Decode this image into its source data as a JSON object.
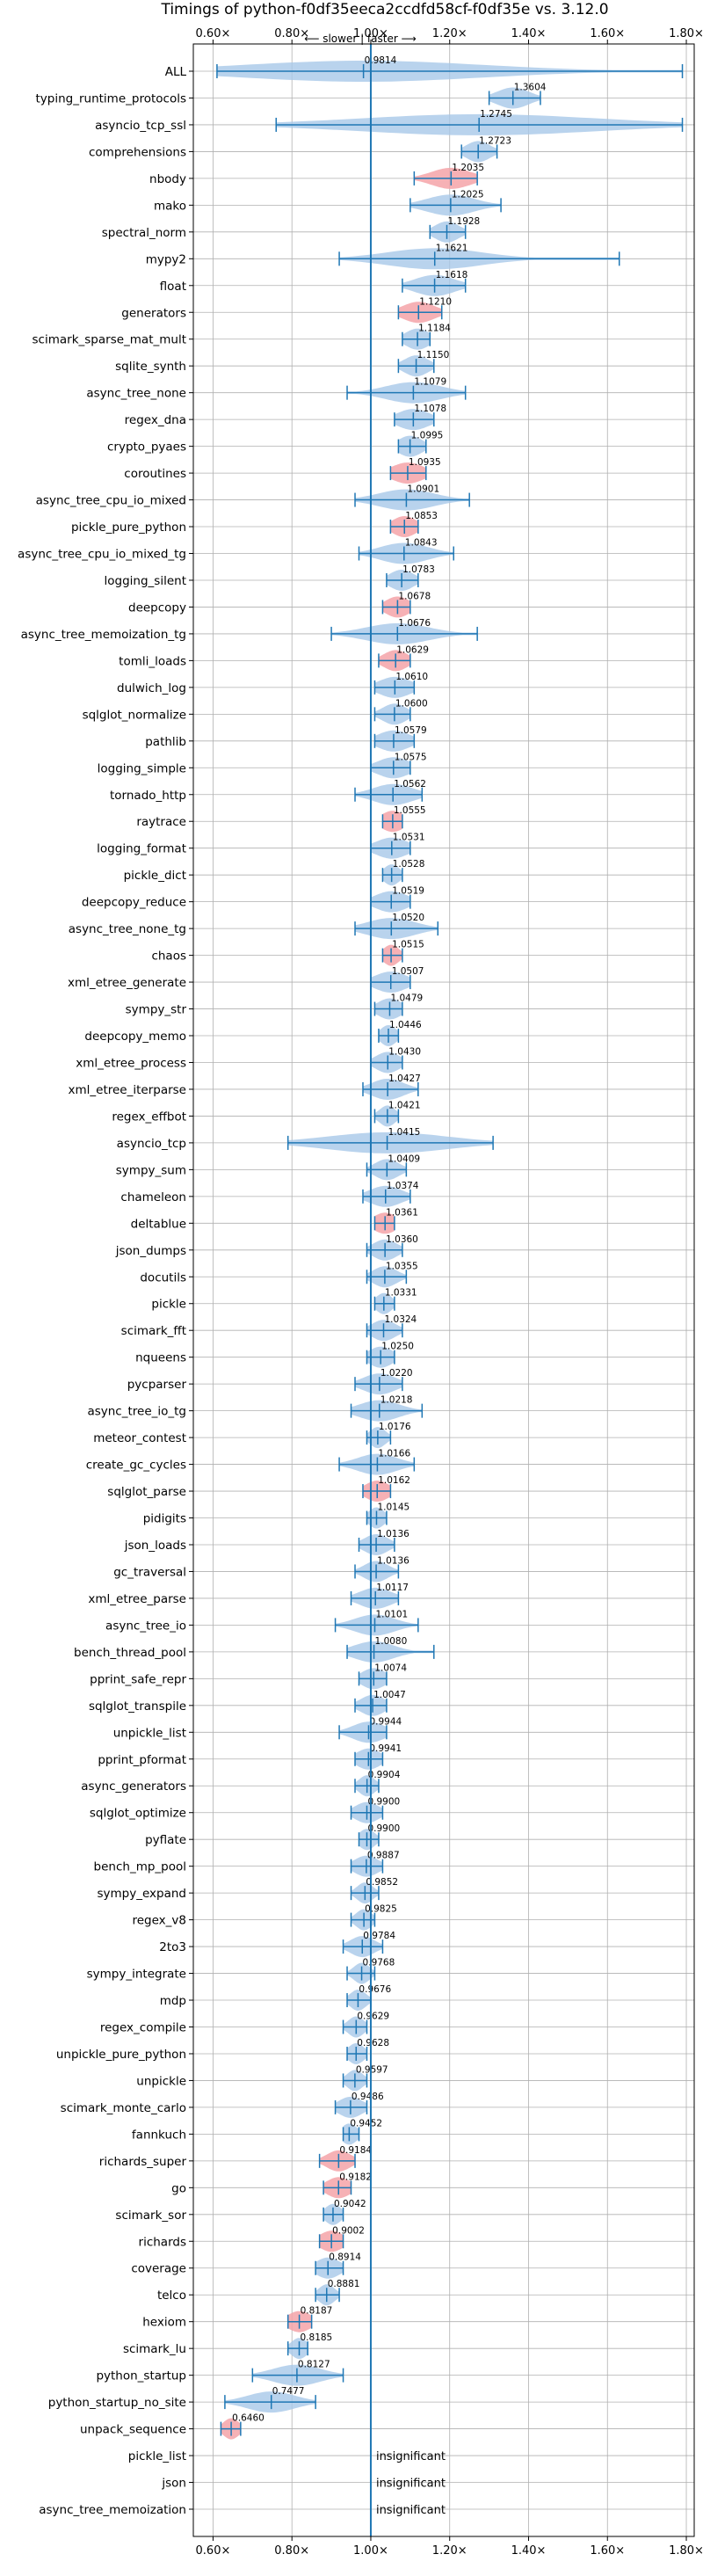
{
  "chart_data": {
    "type": "violin",
    "title": "Timings of python-f0df35eeca2ccdfd58cf-f0df35e vs. 3.12.0",
    "direction_annotation": "⟵ slower | faster ⟶",
    "xlim": [
      0.55,
      1.82
    ],
    "x_ticks": [
      0.6,
      0.8,
      1.0,
      1.2,
      1.4,
      1.6,
      1.8
    ],
    "x_tick_labels": [
      "0.60×",
      "0.80×",
      "1.00×",
      "1.20×",
      "1.40×",
      "1.60×",
      "1.80×"
    ],
    "reference_line": 1.0,
    "grid": true,
    "insignificant_label": "insignificant",
    "rows": [
      {
        "name": "ALL",
        "value": 0.9814,
        "label": "0.9814",
        "min": 0.61,
        "max": 1.79,
        "spread": 0.3,
        "highlight": false
      },
      {
        "name": "typing_runtime_protocols",
        "value": 1.3604,
        "label": "1.3604",
        "min": 1.3,
        "max": 1.43,
        "spread": 0.04,
        "highlight": false
      },
      {
        "name": "asyncio_tcp_ssl",
        "value": 1.2745,
        "label": "1.2745",
        "min": 0.76,
        "max": 1.79,
        "spread": 0.3,
        "highlight": false
      },
      {
        "name": "comprehensions",
        "value": 1.2723,
        "label": "1.2723",
        "min": 1.23,
        "max": 1.32,
        "spread": 0.03,
        "highlight": false
      },
      {
        "name": "nbody",
        "value": 1.2035,
        "label": "1.2035",
        "min": 1.11,
        "max": 1.27,
        "spread": 0.05,
        "highlight": true
      },
      {
        "name": "mako",
        "value": 1.2025,
        "label": "1.2025",
        "min": 1.1,
        "max": 1.33,
        "spread": 0.06,
        "highlight": false
      },
      {
        "name": "spectral_norm",
        "value": 1.1928,
        "label": "1.1928",
        "min": 1.15,
        "max": 1.24,
        "spread": 0.03,
        "highlight": false
      },
      {
        "name": "mypy2",
        "value": 1.1621,
        "label": "1.1621",
        "min": 0.92,
        "max": 1.63,
        "spread": 0.12,
        "highlight": false
      },
      {
        "name": "float",
        "value": 1.1618,
        "label": "1.1618",
        "min": 1.08,
        "max": 1.24,
        "spread": 0.05,
        "highlight": false
      },
      {
        "name": "generators",
        "value": 1.121,
        "label": "1.1210",
        "min": 1.07,
        "max": 1.18,
        "spread": 0.04,
        "highlight": true
      },
      {
        "name": "scimark_sparse_mat_mult",
        "value": 1.1184,
        "label": "1.1184",
        "min": 1.08,
        "max": 1.15,
        "spread": 0.03,
        "highlight": false
      },
      {
        "name": "sqlite_synth",
        "value": 1.115,
        "label": "1.1150",
        "min": 1.07,
        "max": 1.16,
        "spread": 0.03,
        "highlight": false
      },
      {
        "name": "async_tree_none",
        "value": 1.1079,
        "label": "1.1079",
        "min": 0.94,
        "max": 1.24,
        "spread": 0.07,
        "highlight": false
      },
      {
        "name": "regex_dna",
        "value": 1.1078,
        "label": "1.1078",
        "min": 1.06,
        "max": 1.16,
        "spread": 0.04,
        "highlight": false
      },
      {
        "name": "crypto_pyaes",
        "value": 1.0995,
        "label": "1.0995",
        "min": 1.07,
        "max": 1.14,
        "spread": 0.03,
        "highlight": false
      },
      {
        "name": "coroutines",
        "value": 1.0935,
        "label": "1.0935",
        "min": 1.05,
        "max": 1.14,
        "spread": 0.04,
        "highlight": true
      },
      {
        "name": "async_tree_cpu_io_mixed",
        "value": 1.0901,
        "label": "1.0901",
        "min": 0.96,
        "max": 1.25,
        "spread": 0.07,
        "highlight": false
      },
      {
        "name": "pickle_pure_python",
        "value": 1.0853,
        "label": "1.0853",
        "min": 1.05,
        "max": 1.12,
        "spread": 0.03,
        "highlight": true
      },
      {
        "name": "async_tree_cpu_io_mixed_tg",
        "value": 1.0843,
        "label": "1.0843",
        "min": 0.97,
        "max": 1.21,
        "spread": 0.06,
        "highlight": false
      },
      {
        "name": "logging_silent",
        "value": 1.0783,
        "label": "1.0783",
        "min": 1.04,
        "max": 1.12,
        "spread": 0.03,
        "highlight": false
      },
      {
        "name": "deepcopy",
        "value": 1.0678,
        "label": "1.0678",
        "min": 1.03,
        "max": 1.1,
        "spread": 0.03,
        "highlight": true
      },
      {
        "name": "async_tree_memoization_tg",
        "value": 1.0676,
        "label": "1.0676",
        "min": 0.9,
        "max": 1.27,
        "spread": 0.08,
        "highlight": false
      },
      {
        "name": "tomli_loads",
        "value": 1.0629,
        "label": "1.0629",
        "min": 1.02,
        "max": 1.1,
        "spread": 0.03,
        "highlight": true
      },
      {
        "name": "dulwich_log",
        "value": 1.061,
        "label": "1.0610",
        "min": 1.01,
        "max": 1.11,
        "spread": 0.04,
        "highlight": false
      },
      {
        "name": "sqlglot_normalize",
        "value": 1.06,
        "label": "1.0600",
        "min": 1.01,
        "max": 1.1,
        "spread": 0.03,
        "highlight": false
      },
      {
        "name": "pathlib",
        "value": 1.0579,
        "label": "1.0579",
        "min": 1.01,
        "max": 1.11,
        "spread": 0.04,
        "highlight": false
      },
      {
        "name": "logging_simple",
        "value": 1.0575,
        "label": "1.0575",
        "min": 1.0,
        "max": 1.1,
        "spread": 0.04,
        "highlight": false
      },
      {
        "name": "tornado_http",
        "value": 1.0562,
        "label": "1.0562",
        "min": 0.96,
        "max": 1.13,
        "spread": 0.05,
        "highlight": false
      },
      {
        "name": "raytrace",
        "value": 1.0555,
        "label": "1.0555",
        "min": 1.03,
        "max": 1.08,
        "spread": 0.03,
        "highlight": true
      },
      {
        "name": "logging_format",
        "value": 1.0531,
        "label": "1.0531",
        "min": 1.0,
        "max": 1.1,
        "spread": 0.04,
        "highlight": false
      },
      {
        "name": "pickle_dict",
        "value": 1.0528,
        "label": "1.0528",
        "min": 1.03,
        "max": 1.08,
        "spread": 0.02,
        "highlight": false
      },
      {
        "name": "deepcopy_reduce",
        "value": 1.0519,
        "label": "1.0519",
        "min": 1.0,
        "max": 1.1,
        "spread": 0.04,
        "highlight": false
      },
      {
        "name": "async_tree_none_tg",
        "value": 1.052,
        "label": "1.0520",
        "min": 0.96,
        "max": 1.17,
        "spread": 0.06,
        "highlight": false
      },
      {
        "name": "chaos",
        "value": 1.0515,
        "label": "1.0515",
        "min": 1.03,
        "max": 1.08,
        "spread": 0.02,
        "highlight": true
      },
      {
        "name": "xml_etree_generate",
        "value": 1.0507,
        "label": "1.0507",
        "min": 1.0,
        "max": 1.1,
        "spread": 0.04,
        "highlight": false
      },
      {
        "name": "sympy_str",
        "value": 1.0479,
        "label": "1.0479",
        "min": 1.01,
        "max": 1.08,
        "spread": 0.03,
        "highlight": false
      },
      {
        "name": "deepcopy_memo",
        "value": 1.0446,
        "label": "1.0446",
        "min": 1.02,
        "max": 1.07,
        "spread": 0.02,
        "highlight": false
      },
      {
        "name": "xml_etree_process",
        "value": 1.043,
        "label": "1.0430",
        "min": 1.0,
        "max": 1.08,
        "spread": 0.03,
        "highlight": false
      },
      {
        "name": "xml_etree_iterparse",
        "value": 1.0427,
        "label": "1.0427",
        "min": 0.98,
        "max": 1.12,
        "spread": 0.04,
        "highlight": false
      },
      {
        "name": "regex_effbot",
        "value": 1.0421,
        "label": "1.0421",
        "min": 1.01,
        "max": 1.07,
        "spread": 0.02,
        "highlight": false
      },
      {
        "name": "asyncio_tcp",
        "value": 1.0415,
        "label": "1.0415",
        "min": 0.79,
        "max": 1.31,
        "spread": 0.15,
        "highlight": false
      },
      {
        "name": "sympy_sum",
        "value": 1.0409,
        "label": "1.0409",
        "min": 0.99,
        "max": 1.09,
        "spread": 0.03,
        "highlight": false
      },
      {
        "name": "chameleon",
        "value": 1.0374,
        "label": "1.0374",
        "min": 0.98,
        "max": 1.1,
        "spread": 0.04,
        "highlight": false
      },
      {
        "name": "deltablue",
        "value": 1.0361,
        "label": "1.0361",
        "min": 1.01,
        "max": 1.06,
        "spread": 0.03,
        "highlight": true
      },
      {
        "name": "json_dumps",
        "value": 1.036,
        "label": "1.0360",
        "min": 0.99,
        "max": 1.08,
        "spread": 0.03,
        "highlight": false
      },
      {
        "name": "docutils",
        "value": 1.0355,
        "label": "1.0355",
        "min": 0.99,
        "max": 1.09,
        "spread": 0.03,
        "highlight": false
      },
      {
        "name": "pickle",
        "value": 1.0331,
        "label": "1.0331",
        "min": 1.01,
        "max": 1.06,
        "spread": 0.02,
        "highlight": false
      },
      {
        "name": "scimark_fft",
        "value": 1.0324,
        "label": "1.0324",
        "min": 0.99,
        "max": 1.08,
        "spread": 0.03,
        "highlight": false
      },
      {
        "name": "nqueens",
        "value": 1.025,
        "label": "1.0250",
        "min": 0.99,
        "max": 1.06,
        "spread": 0.03,
        "highlight": false
      },
      {
        "name": "pycparser",
        "value": 1.022,
        "label": "1.0220",
        "min": 0.96,
        "max": 1.08,
        "spread": 0.04,
        "highlight": false
      },
      {
        "name": "async_tree_io_tg",
        "value": 1.0218,
        "label": "1.0218",
        "min": 0.95,
        "max": 1.13,
        "spread": 0.05,
        "highlight": false
      },
      {
        "name": "meteor_contest",
        "value": 1.0176,
        "label": "1.0176",
        "min": 0.99,
        "max": 1.05,
        "spread": 0.02,
        "highlight": false
      },
      {
        "name": "create_gc_cycles",
        "value": 1.0166,
        "label": "1.0166",
        "min": 0.92,
        "max": 1.11,
        "spread": 0.05,
        "highlight": false
      },
      {
        "name": "sqlglot_parse",
        "value": 1.0162,
        "label": "1.0162",
        "min": 0.98,
        "max": 1.05,
        "spread": 0.03,
        "highlight": true
      },
      {
        "name": "pidigits",
        "value": 1.0145,
        "label": "1.0145",
        "min": 0.99,
        "max": 1.04,
        "spread": 0.02,
        "highlight": false
      },
      {
        "name": "json_loads",
        "value": 1.0136,
        "label": "1.0136",
        "min": 0.97,
        "max": 1.06,
        "spread": 0.03,
        "highlight": false
      },
      {
        "name": "gc_traversal",
        "value": 1.0136,
        "label": "1.0136",
        "min": 0.96,
        "max": 1.07,
        "spread": 0.03,
        "highlight": false
      },
      {
        "name": "xml_etree_parse",
        "value": 1.0117,
        "label": "1.0117",
        "min": 0.95,
        "max": 1.07,
        "spread": 0.04,
        "highlight": false
      },
      {
        "name": "async_tree_io",
        "value": 1.0101,
        "label": "1.0101",
        "min": 0.91,
        "max": 1.12,
        "spread": 0.05,
        "highlight": false
      },
      {
        "name": "bench_thread_pool",
        "value": 1.008,
        "label": "1.0080",
        "min": 0.94,
        "max": 1.16,
        "spread": 0.05,
        "highlight": false
      },
      {
        "name": "pprint_safe_repr",
        "value": 1.0074,
        "label": "1.0074",
        "min": 0.97,
        "max": 1.04,
        "spread": 0.03,
        "highlight": false
      },
      {
        "name": "sqlglot_transpile",
        "value": 1.0047,
        "label": "1.0047",
        "min": 0.96,
        "max": 1.04,
        "spread": 0.03,
        "highlight": false
      },
      {
        "name": "unpickle_list",
        "value": 0.9944,
        "label": "0.9944",
        "min": 0.92,
        "max": 1.04,
        "spread": 0.04,
        "highlight": false
      },
      {
        "name": "pprint_pformat",
        "value": 0.9941,
        "label": "0.9941",
        "min": 0.96,
        "max": 1.03,
        "spread": 0.03,
        "highlight": false
      },
      {
        "name": "async_generators",
        "value": 0.9904,
        "label": "0.9904",
        "min": 0.96,
        "max": 1.02,
        "spread": 0.02,
        "highlight": false
      },
      {
        "name": "sqlglot_optimize",
        "value": 0.99,
        "label": "0.9900",
        "min": 0.95,
        "max": 1.03,
        "spread": 0.03,
        "highlight": false
      },
      {
        "name": "pyflate",
        "value": 0.99,
        "label": "0.9900",
        "min": 0.97,
        "max": 1.02,
        "spread": 0.02,
        "highlight": false
      },
      {
        "name": "bench_mp_pool",
        "value": 0.9887,
        "label": "0.9887",
        "min": 0.95,
        "max": 1.03,
        "spread": 0.03,
        "highlight": false
      },
      {
        "name": "sympy_expand",
        "value": 0.9852,
        "label": "0.9852",
        "min": 0.95,
        "max": 1.02,
        "spread": 0.02,
        "highlight": false
      },
      {
        "name": "regex_v8",
        "value": 0.9825,
        "label": "0.9825",
        "min": 0.95,
        "max": 1.01,
        "spread": 0.02,
        "highlight": false
      },
      {
        "name": "2to3",
        "value": 0.9784,
        "label": "0.9784",
        "min": 0.93,
        "max": 1.03,
        "spread": 0.03,
        "highlight": false
      },
      {
        "name": "sympy_integrate",
        "value": 0.9768,
        "label": "0.9768",
        "min": 0.94,
        "max": 1.01,
        "spread": 0.02,
        "highlight": false
      },
      {
        "name": "mdp",
        "value": 0.9676,
        "label": "0.9676",
        "min": 0.94,
        "max": 1.0,
        "spread": 0.02,
        "highlight": false
      },
      {
        "name": "regex_compile",
        "value": 0.9629,
        "label": "0.9629",
        "min": 0.93,
        "max": 0.99,
        "spread": 0.02,
        "highlight": false
      },
      {
        "name": "unpickle_pure_python",
        "value": 0.9628,
        "label": "0.9628",
        "min": 0.94,
        "max": 0.99,
        "spread": 0.02,
        "highlight": false
      },
      {
        "name": "unpickle",
        "value": 0.9597,
        "label": "0.9597",
        "min": 0.93,
        "max": 0.99,
        "spread": 0.02,
        "highlight": false
      },
      {
        "name": "scimark_monte_carlo",
        "value": 0.9486,
        "label": "0.9486",
        "min": 0.91,
        "max": 0.99,
        "spread": 0.03,
        "highlight": false
      },
      {
        "name": "fannkuch",
        "value": 0.9452,
        "label": "0.9452",
        "min": 0.93,
        "max": 0.97,
        "spread": 0.02,
        "highlight": false
      },
      {
        "name": "richards_super",
        "value": 0.9184,
        "label": "0.9184",
        "min": 0.87,
        "max": 0.96,
        "spread": 0.03,
        "highlight": true
      },
      {
        "name": "go",
        "value": 0.9182,
        "label": "0.9182",
        "min": 0.88,
        "max": 0.95,
        "spread": 0.03,
        "highlight": true
      },
      {
        "name": "scimark_sor",
        "value": 0.9042,
        "label": "0.9042",
        "min": 0.88,
        "max": 0.93,
        "spread": 0.02,
        "highlight": false
      },
      {
        "name": "richards",
        "value": 0.9002,
        "label": "0.9002",
        "min": 0.87,
        "max": 0.93,
        "spread": 0.03,
        "highlight": true
      },
      {
        "name": "coverage",
        "value": 0.8914,
        "label": "0.8914",
        "min": 0.86,
        "max": 0.93,
        "spread": 0.03,
        "highlight": false
      },
      {
        "name": "telco",
        "value": 0.8881,
        "label": "0.8881",
        "min": 0.86,
        "max": 0.92,
        "spread": 0.02,
        "highlight": false
      },
      {
        "name": "hexiom",
        "value": 0.8187,
        "label": "0.8187",
        "min": 0.79,
        "max": 0.85,
        "spread": 0.03,
        "highlight": true
      },
      {
        "name": "scimark_lu",
        "value": 0.8185,
        "label": "0.8185",
        "min": 0.79,
        "max": 0.84,
        "spread": 0.02,
        "highlight": false
      },
      {
        "name": "python_startup",
        "value": 0.8127,
        "label": "0.8127",
        "min": 0.7,
        "max": 0.93,
        "spread": 0.06,
        "highlight": false
      },
      {
        "name": "python_startup_no_site",
        "value": 0.7477,
        "label": "0.7477",
        "min": 0.63,
        "max": 0.86,
        "spread": 0.06,
        "highlight": false
      },
      {
        "name": "unpack_sequence",
        "value": 0.646,
        "label": "0.6460",
        "min": 0.62,
        "max": 0.67,
        "spread": 0.02,
        "highlight": true
      },
      {
        "name": "pickle_list",
        "insignificant": true
      },
      {
        "name": "json",
        "insignificant": true
      },
      {
        "name": "async_tree_memoization",
        "insignificant": true
      }
    ]
  },
  "colors": {
    "violin_fill": "#a8c8e8",
    "violin_edge": "#1f77b4",
    "highlight_fill": "#f4a3a8",
    "reference_line": "#1f77b4",
    "grid": "#b0b0b0"
  }
}
